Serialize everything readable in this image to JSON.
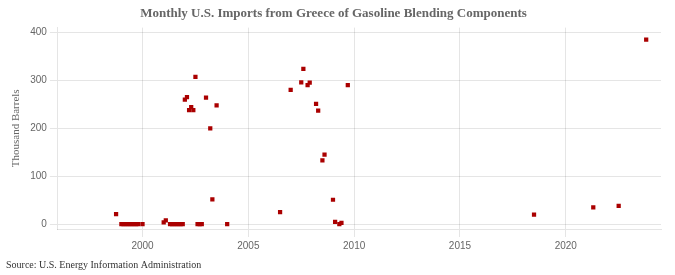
{
  "chart_data": {
    "type": "scatter",
    "title": "Monthly U.S. Imports from Greece of Gasoline Blending Components",
    "y_label": "Thousand Barrels",
    "annotations": [
      "Source: U.S. Energy Information Administration"
    ],
    "color": "#aa0000",
    "marker": "square",
    "grid": true,
    "xlim": [
      1996,
      2024.5
    ],
    "ylim": [
      -10,
      410
    ],
    "xticks": [
      2000,
      2005,
      2010,
      2015,
      2020
    ],
    "yticks": [
      0,
      100,
      200,
      300,
      400
    ],
    "x": [
      1998.75,
      1999.0,
      1999.1,
      1999.2,
      1999.3,
      1999.4,
      1999.5,
      1999.6,
      1999.7,
      1999.8,
      2000.0,
      2001.0,
      2001.1,
      2001.3,
      2001.4,
      2001.5,
      2001.6,
      2001.7,
      2001.8,
      2001.9,
      2002.0,
      2002.1,
      2002.2,
      2002.3,
      2002.4,
      2002.5,
      2002.6,
      2002.7,
      2002.8,
      2003.0,
      2003.2,
      2003.3,
      2003.5,
      2004.0,
      2006.5,
      2007.0,
      2007.5,
      2007.6,
      2007.8,
      2007.9,
      2008.2,
      2008.3,
      2008.5,
      2008.6,
      2009.0,
      2009.1,
      2009.3,
      2009.4,
      2009.7,
      2018.5,
      2021.3,
      2022.5,
      2023.8
    ],
    "values": [
      21,
      0,
      0,
      0,
      0,
      0,
      0,
      0,
      0,
      0,
      0,
      4,
      8,
      0,
      0,
      0,
      0,
      0,
      0,
      0,
      260,
      265,
      238,
      244,
      238,
      307,
      0,
      0,
      0,
      264,
      200,
      52,
      248,
      0,
      25,
      280,
      296,
      324,
      290,
      295,
      251,
      237,
      133,
      145,
      51,
      5,
      0,
      3,
      290,
      20,
      35,
      38,
      385
    ]
  }
}
